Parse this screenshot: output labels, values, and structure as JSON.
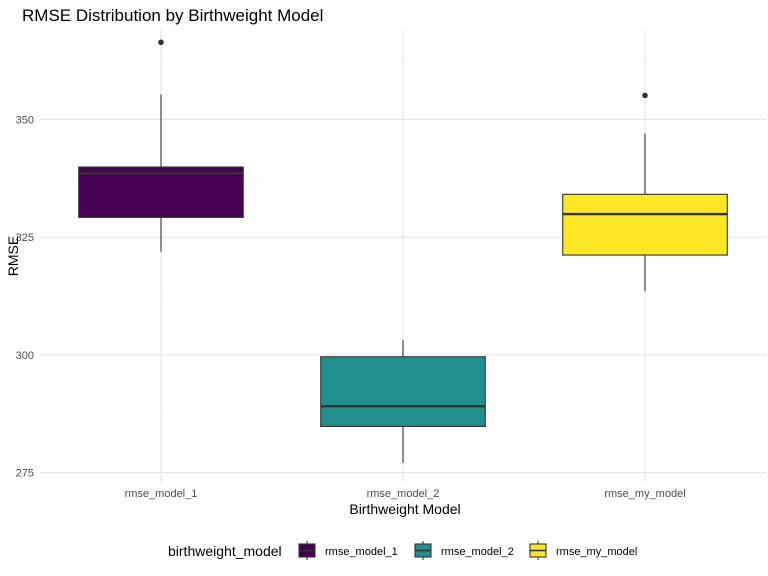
{
  "chart_data": {
    "type": "boxplot",
    "title": "RMSE Distribution by Birthweight Model",
    "xlabel": "Birthweight Model",
    "ylabel": "RMSE",
    "ylim": [
      273,
      369
    ],
    "yticks": [
      275,
      300,
      325,
      350
    ],
    "grid": true,
    "legend": {
      "title": "birthweight_model",
      "placement": "bottom"
    },
    "categories": [
      "rmse_model_1",
      "rmse_model_2",
      "rmse_my_model"
    ],
    "colors": [
      "#440154",
      "#21908c",
      "#fde725"
    ],
    "boxes": [
      {
        "category": "rmse_model_1",
        "whisker_low": 321.9,
        "q1": 329.2,
        "median": 338.6,
        "q3": 339.9,
        "whisker_high": 355.3,
        "outliers": [
          366.4
        ]
      },
      {
        "category": "rmse_model_2",
        "whisker_low": 277.1,
        "q1": 284.8,
        "median": 289.1,
        "q3": 299.6,
        "whisker_high": 303.2,
        "outliers": []
      },
      {
        "category": "rmse_my_model",
        "whisker_low": 313.5,
        "q1": 321.2,
        "median": 329.9,
        "q3": 334.1,
        "whisker_high": 347.0,
        "outliers": [
          355.1
        ]
      }
    ]
  }
}
